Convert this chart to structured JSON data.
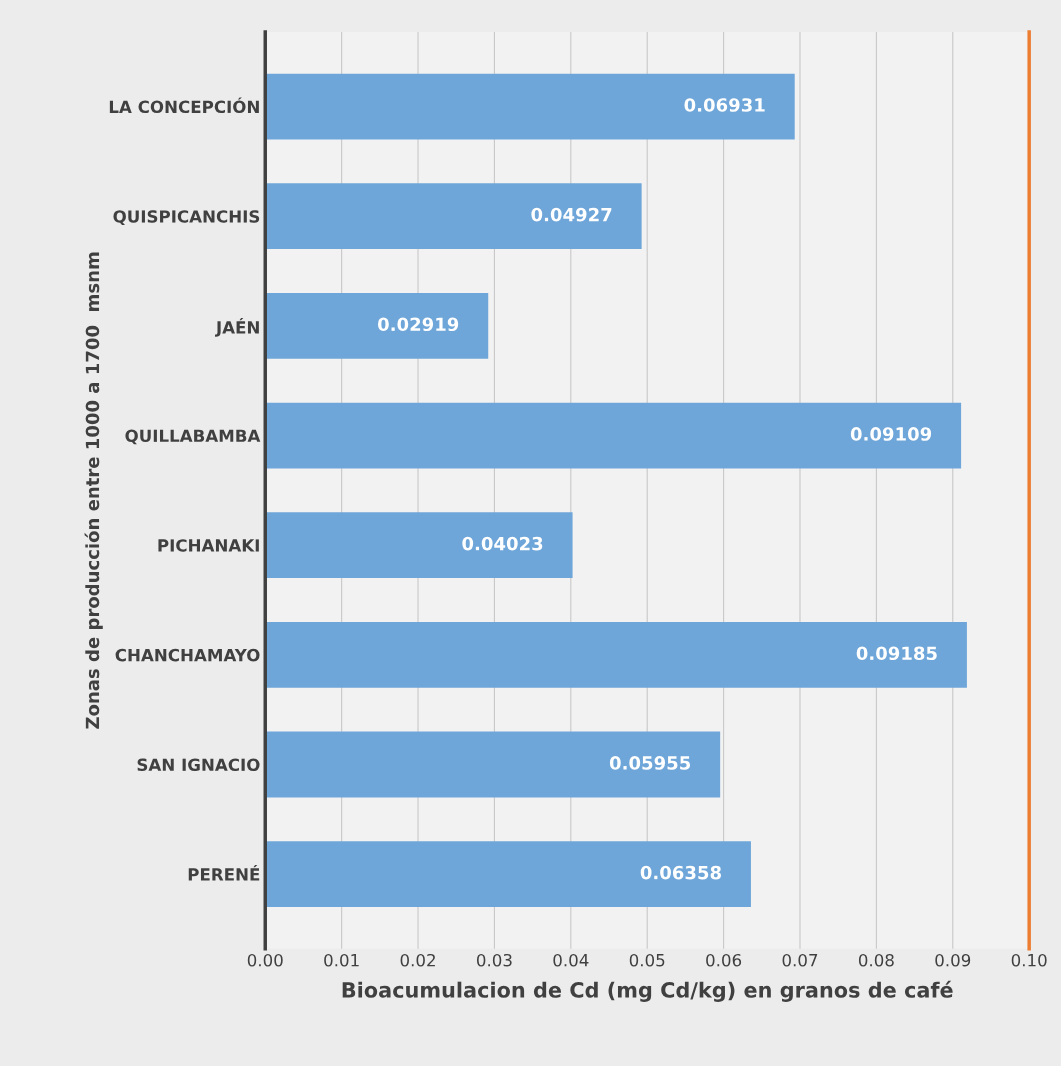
{
  "chart_data": {
    "type": "bar",
    "orientation": "horizontal",
    "xlabel": "Bioacumulacion de Cd (mg Cd/kg) en granos de café",
    "ylabel": "Zonas de producción entre 1000 a 1700  msnm",
    "categories": [
      "LA CONCEPCIÓN",
      "QUISPICANCHIS",
      "JAÉN",
      "QUILLABAMBA",
      "PICHANAKI",
      "CHANCHAMAYO",
      "SAN IGNACIO",
      "PERENÉ"
    ],
    "values": [
      0.06931,
      0.04927,
      0.02919,
      0.09109,
      0.04023,
      0.09185,
      0.05955,
      0.06358
    ],
    "color": "#6fa6d9",
    "data_labels": true,
    "xlim": [
      0,
      0.1
    ],
    "xticks": [
      {
        "value": 0,
        "label": "0.00"
      },
      0.01,
      0.02,
      0.03,
      0.04,
      0.05,
      0.06,
      0.07,
      0.08,
      0.09,
      {
        "value": 0.1,
        "label": "0.10"
      }
    ],
    "grid": "x",
    "ref_lines": [
      {
        "axis": "x",
        "value": 0.1,
        "color": "#ed7d31"
      }
    ]
  }
}
